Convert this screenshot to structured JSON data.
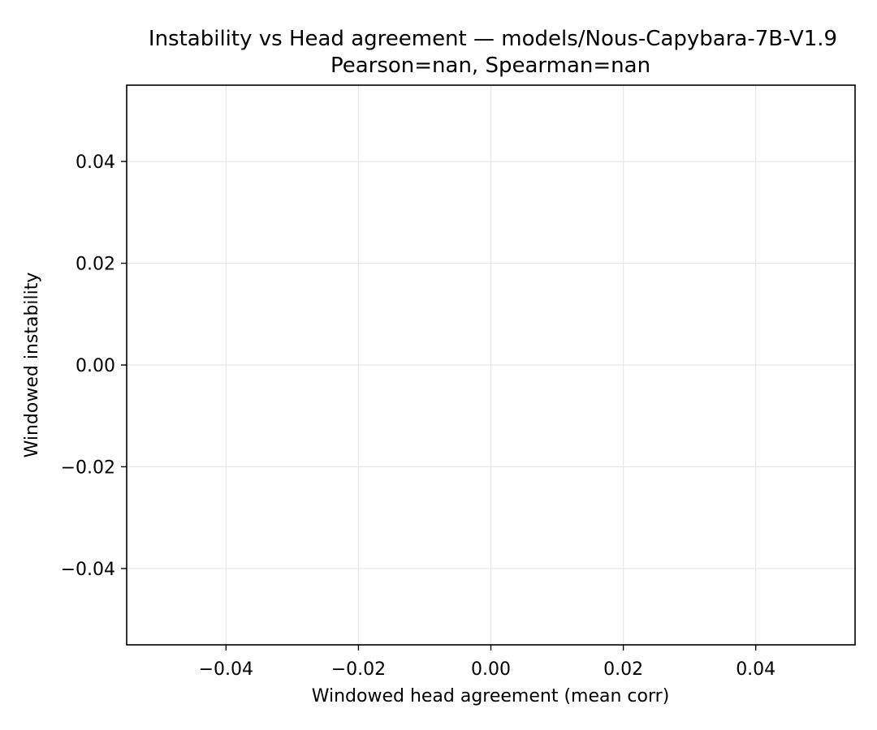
{
  "chart_data": {
    "type": "scatter",
    "title": "Instability vs Head agreement — models/Nous-Capybara-7B-V1.9",
    "subtitle": "Pearson=nan, Spearman=nan",
    "xlabel": "Windowed head agreement (mean corr)",
    "ylabel": "Windowed instability",
    "xlim": [
      -0.055,
      0.055
    ],
    "ylim": [
      -0.055,
      0.055
    ],
    "x_ticks": [
      -0.04,
      -0.02,
      0.0,
      0.02,
      0.04
    ],
    "x_tick_labels": [
      "−0.04",
      "−0.02",
      "0.00",
      "0.02",
      "0.04"
    ],
    "y_ticks": [
      0.04,
      0.02,
      0.0,
      -0.02,
      -0.04
    ],
    "y_tick_labels": [
      "0.04",
      "0.02",
      "0.00",
      "−0.02",
      "−0.04"
    ],
    "grid": true,
    "grid_color": "#e6e6e6",
    "frame_color": "#000000",
    "series": [
      {
        "x": [],
        "y": []
      }
    ]
  }
}
